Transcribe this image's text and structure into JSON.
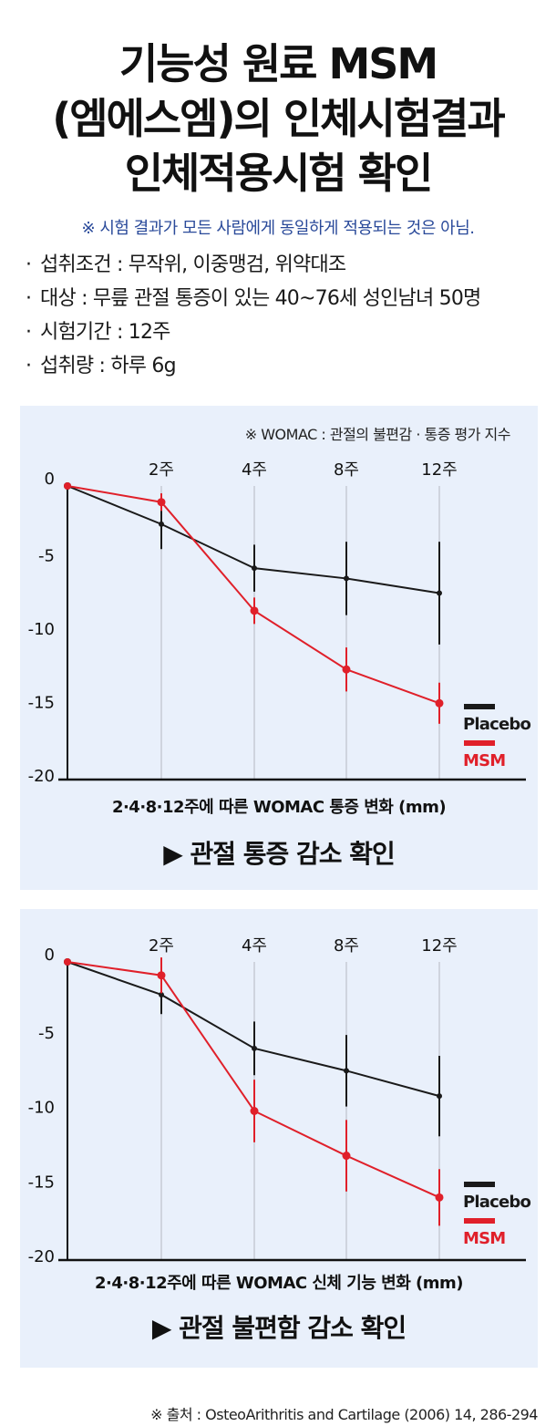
{
  "title_lines": [
    "기능성 원료 MSM",
    "(엠에스엠)의 인체시험결과",
    "인체적용시험 확인"
  ],
  "note": "※ 시험 결과가 모든 사람에게 동일하게 적용되는 것은 아님.",
  "bullets": [
    "섭취조건 : 무작위, 이중맹검, 위약대조",
    "대상 : 무릎 관절 통증이 있는  40~76세 성인남녀 50명",
    "시험기간 : 12주",
    "섭취량 : 하루 6g"
  ],
  "bullet_mark": "·",
  "chart_header": "※ WOMAC : 관절의 불편감 · 통증 평가 지수",
  "source": "※ 출처 : OsteoArithritis and Cartilage (2006) 14, 286-294",
  "colors": {
    "placebo": "#1a1a1a",
    "msm": "#e0202a",
    "panel_bg": "#e9f0fb",
    "note": "#2a4a9a"
  },
  "chart_data": [
    {
      "type": "line",
      "x": [
        "0",
        "2주",
        "4주",
        "8주",
        "12주"
      ],
      "xticklabels": [
        "2주",
        "4주",
        "8주",
        "12주"
      ],
      "yticks": [
        "0",
        "-5",
        "-10",
        "-15",
        "-20"
      ],
      "ylim": [
        -20,
        0
      ],
      "xlabel": "2·4·8·12주에 따른 WOMAC 통증 변화 (mm)",
      "conclusion": "▶ 관절 통증 감소 확인",
      "legend_position": "right",
      "series": [
        {
          "name": "Placebo",
          "color": "#1a1a1a",
          "values": [
            0,
            -2.6,
            -5.6,
            -6.3,
            -7.3
          ],
          "errors": [
            0,
            1.7,
            1.6,
            2.5,
            3.5
          ]
        },
        {
          "name": "MSM",
          "color": "#e0202a",
          "values": [
            0,
            -1.1,
            -8.5,
            -12.5,
            -14.8
          ],
          "errors": [
            0,
            0.6,
            0.9,
            1.5,
            1.4
          ]
        }
      ]
    },
    {
      "type": "line",
      "x": [
        "0",
        "2주",
        "4주",
        "8주",
        "12주"
      ],
      "xticklabels": [
        "2주",
        "4주",
        "8주",
        "12주"
      ],
      "yticks": [
        "0",
        "-5",
        "-10",
        "-15",
        "-20"
      ],
      "ylim": [
        -20,
        0
      ],
      "xlabel": "2·4·8·12주에 따른 WOMAC 신체 기능 변화 (mm)",
      "conclusion": "▶ 관절 불편함 감소 확인",
      "legend_position": "right",
      "series": [
        {
          "name": "Placebo",
          "color": "#1a1a1a",
          "values": [
            0,
            -2.2,
            -5.8,
            -7.3,
            -9.0
          ],
          "errors": [
            0,
            1.3,
            1.8,
            2.4,
            2.7
          ]
        },
        {
          "name": "MSM",
          "color": "#e0202a",
          "values": [
            0,
            -0.9,
            -10.0,
            -13.0,
            -15.8
          ],
          "errors": [
            0,
            1.2,
            2.1,
            2.4,
            1.9
          ]
        }
      ]
    }
  ]
}
